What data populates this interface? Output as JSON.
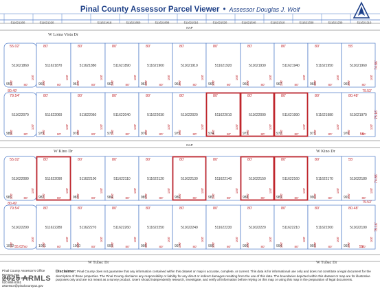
{
  "header": {
    "title": "Pinal County Assessor Parcel Viewer",
    "separator": "•",
    "assessor": "Assessor Douglas J. Wolf"
  },
  "colors": {
    "parcel_line": "#4a78c7",
    "highlight": "#c0272d",
    "dimension_text": "#c0272d",
    "title_text": "#1d3f87"
  },
  "streets": {
    "loma_vista": "W Loma Vista Dr",
    "kino_left": "W Kino Dr",
    "kino_right": "W Kino Dr",
    "tubac_left": "W Tubac Dr",
    "tubac_right": "W Tubac Dr",
    "nap_top": "NAP",
    "nap_mid": "NAP"
  },
  "top_strip": {
    "parcels": [
      "511621200",
      "511621220",
      "",
      "511621418",
      "511621860",
      "511621808",
      "511621516",
      "511621520",
      "511621540",
      "511621310",
      "511621330",
      "511621230",
      "511621210"
    ]
  },
  "blocks": [
    {
      "name": "block-1",
      "rows": [
        {
          "name": "row-1",
          "parcels": [
            {
              "apn": "511621860",
              "lot": "959",
              "front": "55.02'",
              "side": "",
              "highlight": false
            },
            {
              "apn": "511621870",
              "lot": "960",
              "front": "80'",
              "side": "",
              "highlight": false
            },
            {
              "apn": "511621880",
              "lot": "961",
              "front": "80'",
              "side": "",
              "highlight": false
            },
            {
              "apn": "511621890",
              "lot": "962",
              "front": "80'",
              "side": "",
              "highlight": false
            },
            {
              "apn": "511621900",
              "lot": "963",
              "front": "80'",
              "side": "",
              "highlight": false
            },
            {
              "apn": "511621910",
              "lot": "964",
              "front": "80'",
              "side": "",
              "highlight": false
            },
            {
              "apn": "511621920",
              "lot": "965",
              "front": "80'",
              "side": "",
              "highlight": false
            },
            {
              "apn": "511621930",
              "lot": "966",
              "front": "80'",
              "side": "",
              "highlight": false
            },
            {
              "apn": "511621940",
              "lot": "967",
              "front": "80'",
              "side": "",
              "highlight": false
            },
            {
              "apn": "511621950",
              "lot": "968",
              "front": "80'",
              "side": "",
              "highlight": false
            },
            {
              "apn": "511621960",
              "lot": "969",
              "front": "55'",
              "side": "",
              "highlight": false
            }
          ]
        },
        {
          "name": "row-2",
          "parcels": [
            {
              "apn": "511622070",
              "lot": "980",
              "front": "79.54'",
              "side": "",
              "highlight": false
            },
            {
              "apn": "511622060",
              "lot": "979",
              "front": "80'",
              "side": "",
              "highlight": false
            },
            {
              "apn": "511622050",
              "lot": "978",
              "front": "80'",
              "side": "",
              "highlight": false
            },
            {
              "apn": "511622040",
              "lot": "977",
              "front": "80'",
              "side": "",
              "highlight": false
            },
            {
              "apn": "511622030",
              "lot": "976",
              "front": "80'",
              "side": "",
              "highlight": false
            },
            {
              "apn": "511622020",
              "lot": "975",
              "front": "80'",
              "side": "",
              "highlight": false
            },
            {
              "apn": "511622010",
              "lot": "974",
              "front": "80'",
              "side": "",
              "highlight": true
            },
            {
              "apn": "511622000",
              "lot": "973",
              "front": "80'",
              "side": "",
              "highlight": true
            },
            {
              "apn": "511621990",
              "lot": "972",
              "front": "80'",
              "side": "",
              "highlight": true
            },
            {
              "apn": "511621980",
              "lot": "971",
              "front": "80'",
              "side": "",
              "highlight": false
            },
            {
              "apn": "511621970",
              "lot": "970",
              "front": "80.48'",
              "side": "",
              "highlight": false
            }
          ]
        }
      ]
    },
    {
      "name": "block-2",
      "rows": [
        {
          "name": "row-3",
          "parcels": [
            {
              "apn": "511622080",
              "lot": "981",
              "front": "55.02'",
              "side": "",
              "highlight": false
            },
            {
              "apn": "511622090",
              "lot": "982",
              "front": "80'",
              "side": "",
              "highlight": true
            },
            {
              "apn": "511622100",
              "lot": "983",
              "front": "80'",
              "side": "",
              "highlight": false
            },
            {
              "apn": "511622110",
              "lot": "984",
              "front": "80'",
              "side": "",
              "highlight": false
            },
            {
              "apn": "511622120",
              "lot": "985",
              "front": "80'",
              "side": "",
              "highlight": false
            },
            {
              "apn": "511622130",
              "lot": "986",
              "front": "80'",
              "side": "",
              "highlight": true
            },
            {
              "apn": "511622140",
              "lot": "987",
              "front": "80'",
              "side": "",
              "highlight": false
            },
            {
              "apn": "511622150",
              "lot": "988",
              "front": "80'",
              "side": "",
              "highlight": true
            },
            {
              "apn": "511622160",
              "lot": "989",
              "front": "80'",
              "side": "",
              "highlight": true
            },
            {
              "apn": "511622170",
              "lot": "990",
              "front": "80'",
              "side": "",
              "highlight": false
            },
            {
              "apn": "511622180",
              "lot": "991",
              "front": "55'",
              "side": "",
              "highlight": false
            }
          ]
        },
        {
          "name": "row-4",
          "parcels": [
            {
              "apn": "511622290",
              "lot": "1002",
              "front": "79.54'",
              "side": "",
              "highlight": false
            },
            {
              "apn": "511622280",
              "lot": "1001",
              "front": "80'",
              "side": "",
              "highlight": false
            },
            {
              "apn": "511622270",
              "lot": "1000",
              "front": "80'",
              "side": "",
              "highlight": false
            },
            {
              "apn": "511622260",
              "lot": "999",
              "front": "80'",
              "side": "",
              "highlight": false
            },
            {
              "apn": "511622250",
              "lot": "998",
              "front": "80'",
              "side": "",
              "highlight": false
            },
            {
              "apn": "511622240",
              "lot": "997",
              "front": "80'",
              "side": "",
              "highlight": false
            },
            {
              "apn": "511622230",
              "lot": "996",
              "front": "80'",
              "side": "",
              "highlight": false
            },
            {
              "apn": "511622220",
              "lot": "995",
              "front": "80'",
              "side": "",
              "highlight": false
            },
            {
              "apn": "511622210",
              "lot": "994",
              "front": "80'",
              "side": "",
              "highlight": false
            },
            {
              "apn": "511622200",
              "lot": "993",
              "front": "80'",
              "side": "",
              "highlight": false
            },
            {
              "apn": "511622190",
              "lot": "992",
              "front": "80.48'",
              "side": "",
              "highlight": false
            }
          ]
        }
      ]
    }
  ],
  "row_dims": {
    "row1_bottom_left": "80.49'",
    "row1_bottom_right": "79.53'",
    "row2_bottom_right": "55'",
    "row3_bottom_left": "80.49'",
    "row3_bottom_right": "79.53'",
    "row4_bottom_left": "55.02'",
    "row4_bottom_right": "55'",
    "row1_right_side": "74.86'",
    "row2_right_side": "75.16'",
    "row3_right_side": "74.86'",
    "row4_right_side": "75.16'",
    "lot_depth": "100'"
  },
  "footer": {
    "office_name": "Pinal County Assessor's Office",
    "office_box": "PO Box 709",
    "office_city": "Florence, AZ 85132",
    "office_phone": "520.866.6361",
    "office_email": "assessor@pinalcountyaz.gov",
    "watermark": "2025 ARMLS",
    "disclaimer_label": "Disclaimer:",
    "disclaimer_text": "Pinal County does not guarantee that any information contained within this dataset or map is accurate, complete, or current. This data is for informational use only and does not constitute a legal document for the description of these properties. The Pinal County disclaims any responsibility or liability for any direct or indirect damages resulting from the use of this data. The boundaries depicted within this dataset or map are for illustrative purposes only and are not meant as a survey product. Users should independently research, investigate, and verify all information before relying on this map or using this map in the preparation of legal documents."
  }
}
